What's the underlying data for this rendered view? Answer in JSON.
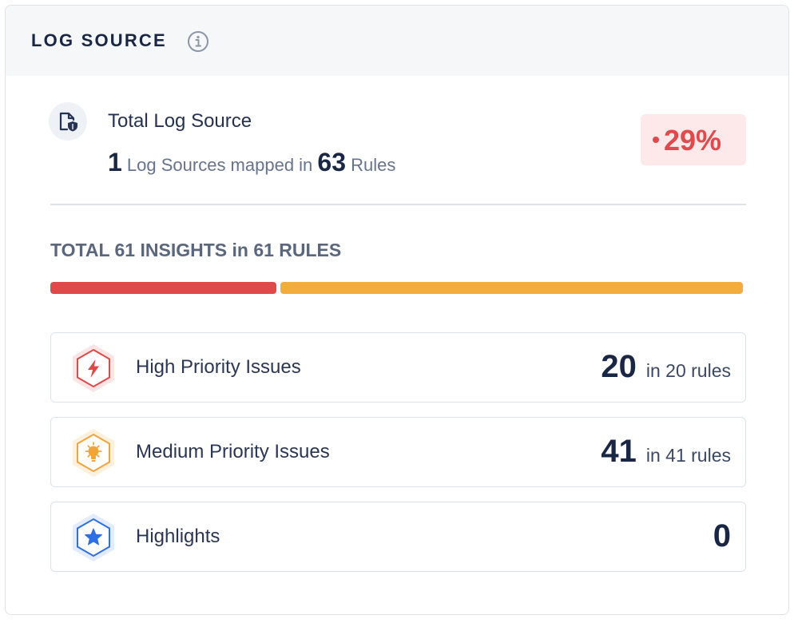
{
  "card": {
    "title": "LOG SOURCE",
    "info_icon": "info-circle-icon"
  },
  "source": {
    "icon": "document-shield-icon",
    "title": "Total Log Source",
    "count": "1",
    "count_text": "Log Sources mapped in",
    "rules": "63",
    "rules_text": "Rules",
    "trend": "29%",
    "trend_color": "#e1494c"
  },
  "insights": {
    "title": "TOTAL 61 INSIGHTS in 61 RULES",
    "bar": [
      {
        "name": "high",
        "value": 20,
        "color": "#e0494a"
      },
      {
        "name": "medium",
        "value": 41,
        "color": "#f2ad3d"
      }
    ]
  },
  "issues": [
    {
      "label": "High Priority Issues",
      "count": "20",
      "suffix": "in 20 rules",
      "icon": "lightning-bolt-icon",
      "color": "#e0494a"
    },
    {
      "label": "Medium Priority Issues",
      "count": "41",
      "suffix": "in 41 rules",
      "icon": "lightbulb-icon",
      "color": "#f2a33a"
    },
    {
      "label": "Highlights",
      "count": "0",
      "suffix": "",
      "icon": "star-icon",
      "color": "#2f6fe4"
    }
  ]
}
